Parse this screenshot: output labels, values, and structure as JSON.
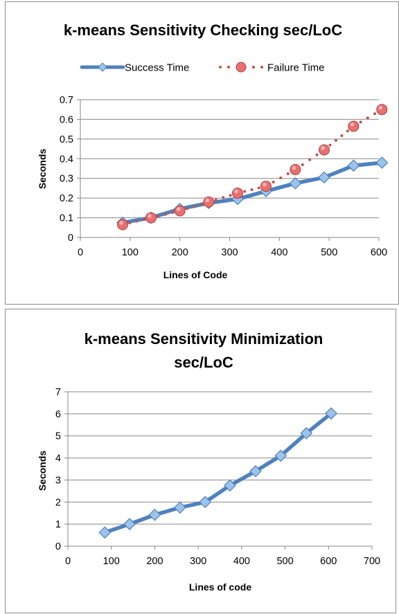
{
  "chart_data": [
    {
      "type": "line",
      "title": "k-means Sensitivity Checking sec/LoC",
      "xlabel": "Lines of Code",
      "ylabel": "Seconds",
      "xlim": [
        0,
        600
      ],
      "ylim": [
        0,
        0.7
      ],
      "xticks": [
        0,
        100,
        200,
        300,
        400,
        500,
        600
      ],
      "yticks": [
        0,
        0.1,
        0.2,
        0.3,
        0.4,
        0.5,
        0.6,
        0.7
      ],
      "grid": "horizontal",
      "legend_position": "top",
      "series": [
        {
          "name": "Success Time",
          "style": "solid line with diamond markers",
          "color": "#4f81bd",
          "x": [
            85,
            142,
            200,
            258,
            316,
            373,
            432,
            490,
            549,
            606
          ],
          "y": [
            0.075,
            0.1,
            0.145,
            0.175,
            0.195,
            0.235,
            0.275,
            0.305,
            0.365,
            0.38
          ]
        },
        {
          "name": "Failure Time",
          "style": "dotted line with circle markers",
          "color": "#c0504d",
          "x": [
            85,
            142,
            200,
            258,
            316,
            373,
            432,
            490,
            549,
            606
          ],
          "y": [
            0.065,
            0.1,
            0.135,
            0.18,
            0.225,
            0.26,
            0.345,
            0.445,
            0.565,
            0.65
          ]
        }
      ]
    },
    {
      "type": "line",
      "title": "k-means Sensitivity Minimization sec/LoC",
      "title_lines": [
        "k-means Sensitivity Minimization",
        "sec/LoC"
      ],
      "xlabel": "Lines of code",
      "ylabel": "Seconds",
      "xlim": [
        0,
        700
      ],
      "ylim": [
        0,
        7
      ],
      "xticks": [
        0,
        100,
        200,
        300,
        400,
        500,
        600,
        700
      ],
      "yticks": [
        0,
        1,
        2,
        3,
        4,
        5,
        6,
        7
      ],
      "grid": "horizontal",
      "legend_position": "none",
      "series": [
        {
          "style": "solid line with diamond markers",
          "color": "#4f81bd",
          "x": [
            85,
            142,
            200,
            258,
            316,
            373,
            432,
            490,
            549,
            606
          ],
          "y": [
            0.62,
            1.0,
            1.42,
            1.75,
            2.0,
            2.75,
            3.4,
            4.1,
            5.12,
            6.02
          ]
        }
      ]
    }
  ]
}
